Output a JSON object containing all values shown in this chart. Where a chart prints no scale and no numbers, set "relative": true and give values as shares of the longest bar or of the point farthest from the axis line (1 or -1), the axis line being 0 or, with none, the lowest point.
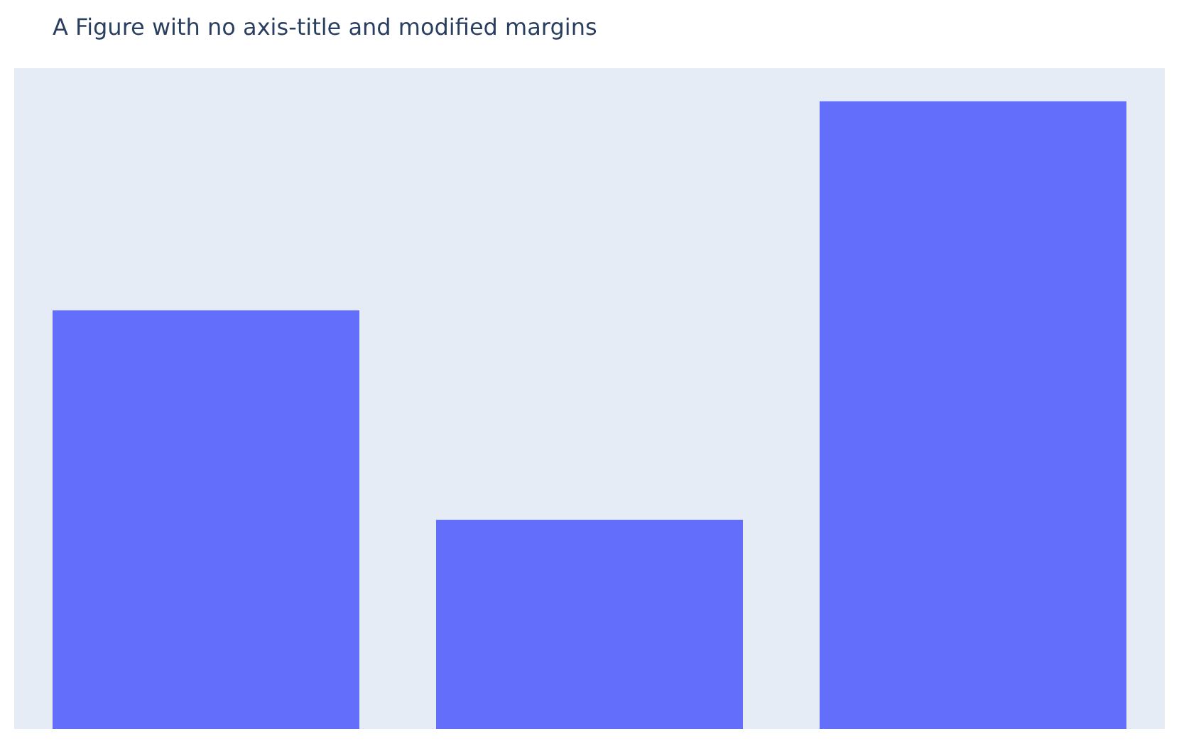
{
  "chart_data": {
    "type": "bar",
    "title": "A Figure with no axis-title and modified margins",
    "categories": [
      null,
      null,
      null
    ],
    "values": [
      0.667,
      0.333,
      1
    ],
    "color": "#636efa",
    "relative": true
  }
}
